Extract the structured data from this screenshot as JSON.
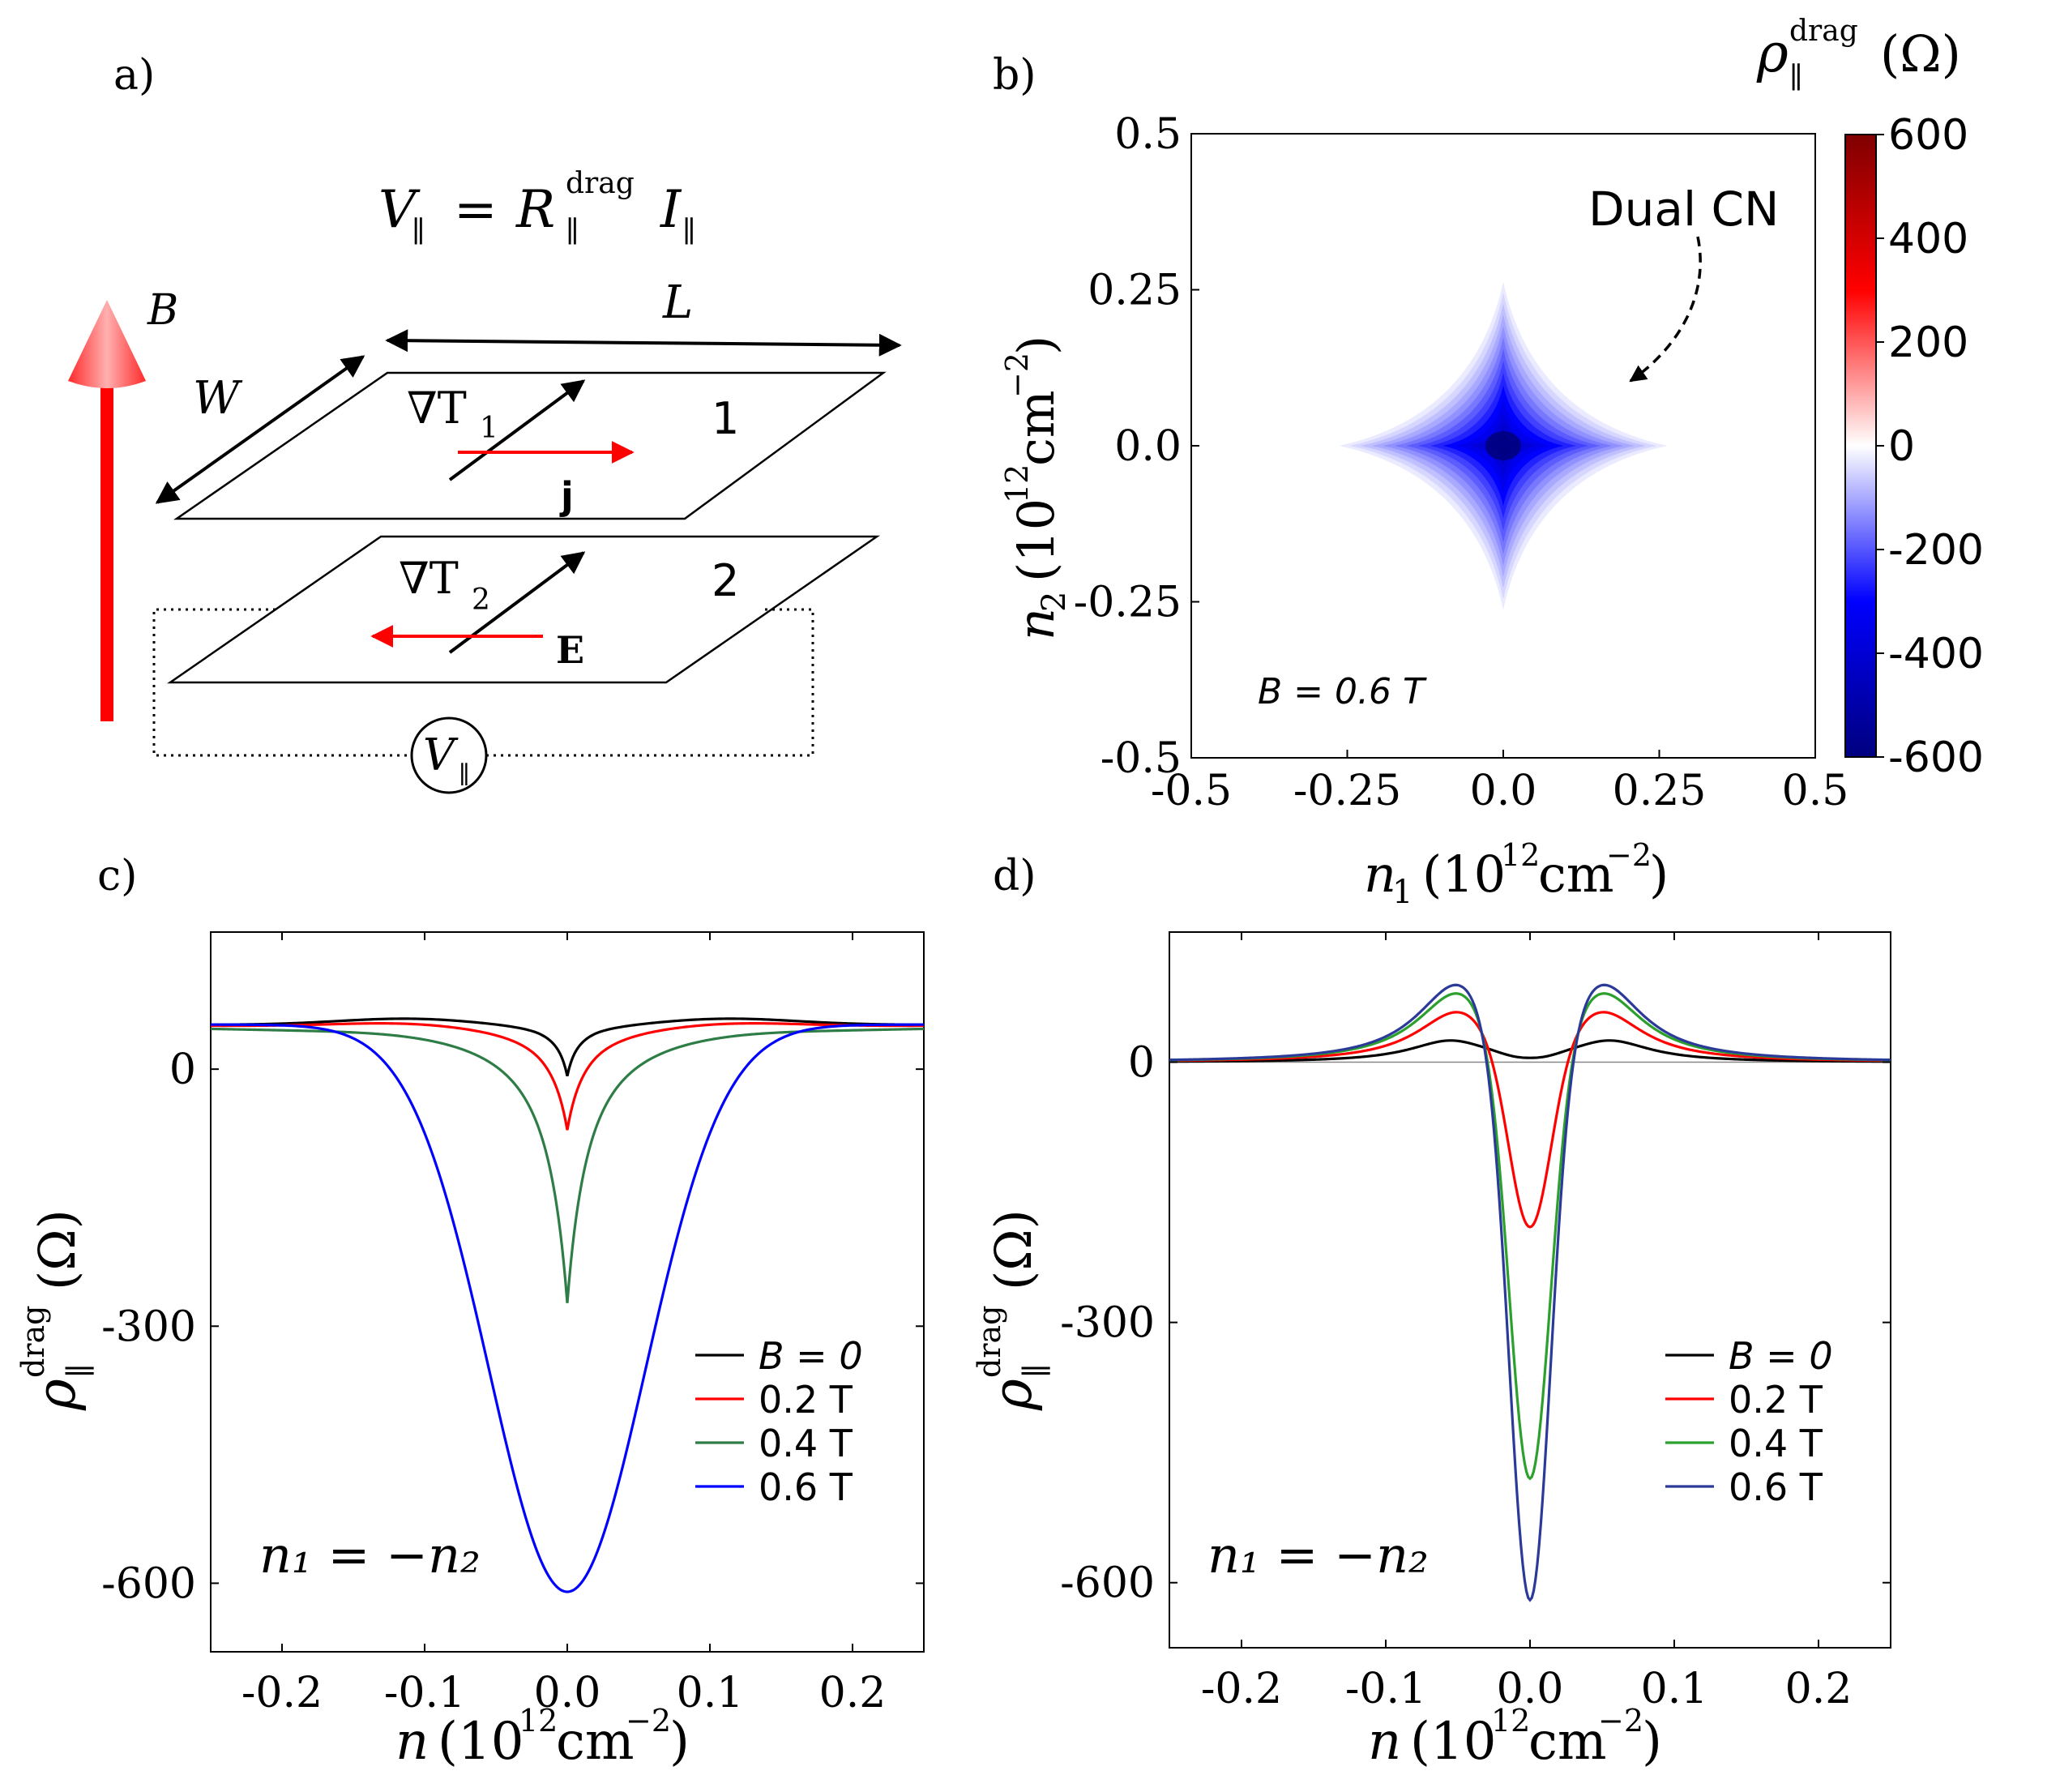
{
  "panel_labels": {
    "a": "a)",
    "b": "b)",
    "c": "c)",
    "d": "d)"
  },
  "schematic": {
    "equation_lhs": "V",
    "equation_lhs_sub": "∥",
    "equation_eq": "=",
    "equation_R": "R",
    "equation_R_sub": "∥",
    "equation_R_sup": "drag",
    "equation_I": "I",
    "equation_I_sub": "∥",
    "b_label": "B",
    "w_label": "W",
    "l_label": "L",
    "grad_t1": "∇T",
    "grad_t1_sub": "1",
    "grad_t2": "∇T",
    "grad_t2_sub": "2",
    "layer1": "1",
    "layer2": "2",
    "j_label": "j",
    "e_label": "E",
    "voltmeter": "V",
    "voltmeter_sub": "∥",
    "colors": {
      "field_arrow": "#ff0000",
      "current": "#ff0000",
      "gradient": "#000000"
    }
  },
  "chart_data": [
    {
      "id": "b",
      "type": "heatmap",
      "title_main": "ρ",
      "title_sup": "drag",
      "title_sub": "∥",
      "title_unit": "(Ω)",
      "xlabel_var": "n",
      "xlabel_sub": "1",
      "ylabel_var": "n",
      "ylabel_sub": "2",
      "unit_base": "(10",
      "unit_exp": "12",
      "unit_cm": "cm",
      "unit_exp2": "−2",
      "unit_close": ")",
      "xlim": [
        -0.5,
        0.5
      ],
      "ylim": [
        -0.5,
        0.5
      ],
      "xticks": [
        "-0.5",
        "-0.25",
        "0.0",
        "0.25",
        "0.5"
      ],
      "yticks": [
        "0.5",
        "0.25",
        "0.0",
        "-0.25",
        "-0.5"
      ],
      "colorbar_ticks": [
        "600",
        "400",
        "200",
        "0",
        "-200",
        "-400",
        "-600"
      ],
      "colorbar_range": [
        -600,
        600
      ],
      "center_value": -600,
      "feature_halfwidth": 0.28,
      "annotation": "Dual CN",
      "field_label": "B = 0.6 T",
      "colors": {
        "low": "#00007f",
        "mid_low": "#0000ff",
        "zero": "#ffffff",
        "mid_high": "#ff0000",
        "high": "#7f0000"
      }
    },
    {
      "id": "c",
      "type": "line",
      "xlim": [
        -0.25,
        0.25
      ],
      "ylim": [
        -680,
        160
      ],
      "xticks": [
        "-0.2",
        "-0.1",
        "0.0",
        "0.1",
        "0.2"
      ],
      "xtick_values": [
        -0.2,
        -0.1,
        0.0,
        0.1,
        0.2
      ],
      "yticks": [
        "0",
        "-300",
        "-600"
      ],
      "ytick_values": [
        0,
        -300,
        -600
      ],
      "xlabel_var": "n",
      "unit_base": "(10",
      "unit_exp": "12",
      "unit_cm": "cm",
      "unit_exp2": "−2",
      "unit_close": ")",
      "ylabel_main": "ρ",
      "ylabel_sup": "drag",
      "ylabel_sub": "∥",
      "ylabel_unit": "(Ω)",
      "annotation": "n₁ = −n₂",
      "legend": [
        "B = 0",
        "0.2 T",
        "0.4 T",
        "0.6 T"
      ],
      "series": [
        {
          "name": "B = 0",
          "color": "#000000",
          "baseline": 52,
          "peak": 60,
          "center": 0,
          "dip_width": 0.025,
          "shape": "cusp"
        },
        {
          "name": "0.2 T",
          "color": "#ff0000",
          "baseline": 52,
          "peak": 58,
          "center": -65,
          "dip_width": 0.042,
          "shape": "cusp"
        },
        {
          "name": "0.4 T",
          "color": "#2e7d46",
          "baseline": 52,
          "peak": 55,
          "center": -270,
          "dip_width": 0.05,
          "shape": "cusp"
        },
        {
          "name": "0.6 T",
          "color": "#0000ff",
          "baseline": 52,
          "peak": 52,
          "center": -610,
          "dip_width": 0.055,
          "shape": "gauss"
        }
      ]
    },
    {
      "id": "d",
      "type": "line",
      "xlim": [
        -0.25,
        0.25
      ],
      "ylim": [
        -675,
        150
      ],
      "xticks": [
        "-0.2",
        "-0.1",
        "0.0",
        "0.1",
        "0.2"
      ],
      "xtick_values": [
        -0.2,
        -0.1,
        0.0,
        0.1,
        0.2
      ],
      "yticks": [
        "0",
        "-300",
        "-600"
      ],
      "ytick_values": [
        0,
        -300,
        -600
      ],
      "xlabel_var": "n",
      "unit_base": "(10",
      "unit_exp": "12",
      "unit_cm": "cm",
      "unit_exp2": "−2",
      "unit_close": ")",
      "ylabel_main": "ρ",
      "ylabel_sup": "drag",
      "ylabel_sub": "∥",
      "ylabel_unit": "(Ω)",
      "annotation": "n₁ = −n₂",
      "legend": [
        "B = 0",
        "0.2 T",
        "0.4 T",
        "0.6 T"
      ],
      "series": [
        {
          "name": "B = 0",
          "color": "#000000",
          "peak": 25,
          "center": 5,
          "peak_x": 0.055
        },
        {
          "name": "0.2 T",
          "color": "#ff0000",
          "peak": 58,
          "center": -190,
          "peak_x": 0.05
        },
        {
          "name": "0.4 T",
          "color": "#2ca02c",
          "peak": 80,
          "center": -480,
          "peak_x": 0.05
        },
        {
          "name": "0.6 T",
          "color": "#2b3a99",
          "peak": 90,
          "center": -620,
          "peak_x": 0.05
        }
      ]
    }
  ]
}
